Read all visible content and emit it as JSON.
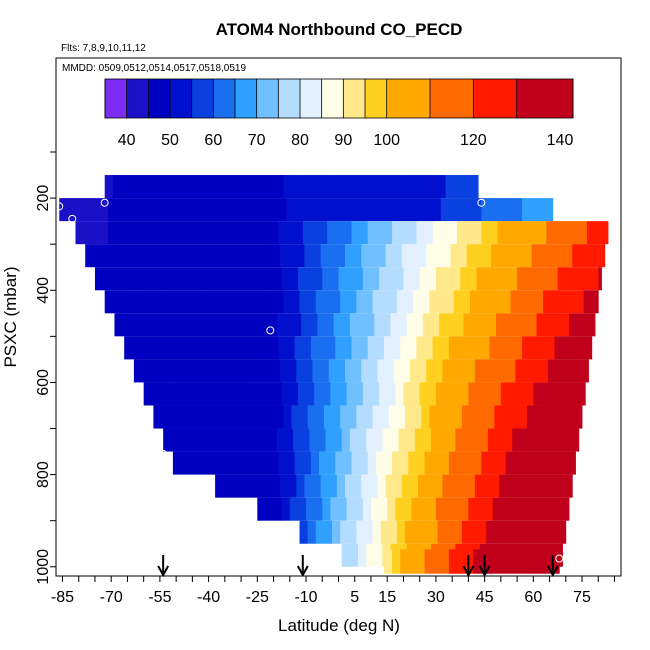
{
  "chart_data": {
    "type": "heatmap",
    "title": "ATOM4 Northbound CO_PECD",
    "subtitle_flights": "Flts: 7,8,9,10,11,12",
    "subtitle_dates": "MMDD: 0509,0512,0514,0517,0518,0519",
    "xlabel": "Latitude (deg N)",
    "ylabel": "PSXC (mbar)",
    "xlim": [
      -87,
      87
    ],
    "ylim": [
      1020,
      0
    ],
    "x_ticks": [
      -85,
      -70,
      -55,
      -40,
      -25,
      -10,
      5,
      15,
      30,
      45,
      60,
      75
    ],
    "x_tick_labels": [
      "-85",
      "-70",
      "-55",
      "-40",
      "-25",
      "-10",
      "5",
      "15",
      "30",
      "45",
      "60",
      "75"
    ],
    "y_ticks": [
      200,
      400,
      600,
      800,
      1000
    ],
    "y_tick_labels": [
      "200",
      "400",
      "600",
      "800",
      "1000"
    ],
    "colorbar": {
      "min": 35,
      "max": 143,
      "ticks": [
        40,
        50,
        60,
        70,
        80,
        90,
        100,
        120,
        140
      ],
      "tick_labels": [
        "40",
        "50",
        "60",
        "70",
        "80",
        "90",
        "100",
        "120",
        "140"
      ],
      "boundaries": [
        35,
        40,
        45,
        50,
        55,
        60,
        65,
        70,
        75,
        80,
        85,
        90,
        95,
        100,
        110,
        120,
        130,
        143
      ],
      "colors": [
        "#7b2cf0",
        "#1a10c8",
        "#0000c0",
        "#0010cc",
        "#0a3fe0",
        "#1a6ef0",
        "#30a0ff",
        "#70c0ff",
        "#b4dcff",
        "#e2f0ff",
        "#fdfde8",
        "#ffe98a",
        "#ffd020",
        "#ffa800",
        "#ff6a00",
        "#ff1a00",
        "#c0001a"
      ]
    },
    "bands": [
      {
        "pressure": 175,
        "lat_min": -72,
        "lat_max": 43
      },
      {
        "pressure": 225,
        "lat_min": -86,
        "lat_max": 66
      },
      {
        "pressure": 275,
        "lat_min": -81,
        "lat_max": 83
      },
      {
        "pressure": 325,
        "lat_min": -78,
        "lat_max": 82
      },
      {
        "pressure": 375,
        "lat_min": -75,
        "lat_max": 81
      },
      {
        "pressure": 425,
        "lat_min": -72,
        "lat_max": 80
      },
      {
        "pressure": 475,
        "lat_min": -69,
        "lat_max": 79
      },
      {
        "pressure": 525,
        "lat_min": -66,
        "lat_max": 78
      },
      {
        "pressure": 575,
        "lat_min": -63,
        "lat_max": 77
      },
      {
        "pressure": 625,
        "lat_min": -60,
        "lat_max": 76
      },
      {
        "pressure": 675,
        "lat_min": -57,
        "lat_max": 75
      },
      {
        "pressure": 725,
        "lat_min": -54,
        "lat_max": 74
      },
      {
        "pressure": 775,
        "lat_min": -51,
        "lat_max": 73
      },
      {
        "pressure": 825,
        "lat_min": -38,
        "lat_max": 72
      },
      {
        "pressure": 875,
        "lat_min": -25,
        "lat_max": 71
      },
      {
        "pressure": 925,
        "lat_min": -12,
        "lat_max": 70
      },
      {
        "pressure": 975,
        "lat_min": 1,
        "lat_max": 69
      },
      {
        "pressure": 1000,
        "lat_min": 14,
        "lat_max": 68
      }
    ],
    "circles": [
      {
        "lat": -86,
        "pressure": 218
      },
      {
        "lat": -72,
        "pressure": 210
      },
      {
        "lat": -82,
        "pressure": 245
      },
      {
        "lat": -21,
        "pressure": 487
      },
      {
        "lat": -54,
        "pressure": 755
      },
      {
        "lat": 44,
        "pressure": 210
      },
      {
        "lat": 68,
        "pressure": 982
      }
    ],
    "arrows": [
      -54,
      -11,
      40,
      45,
      66
    ]
  }
}
